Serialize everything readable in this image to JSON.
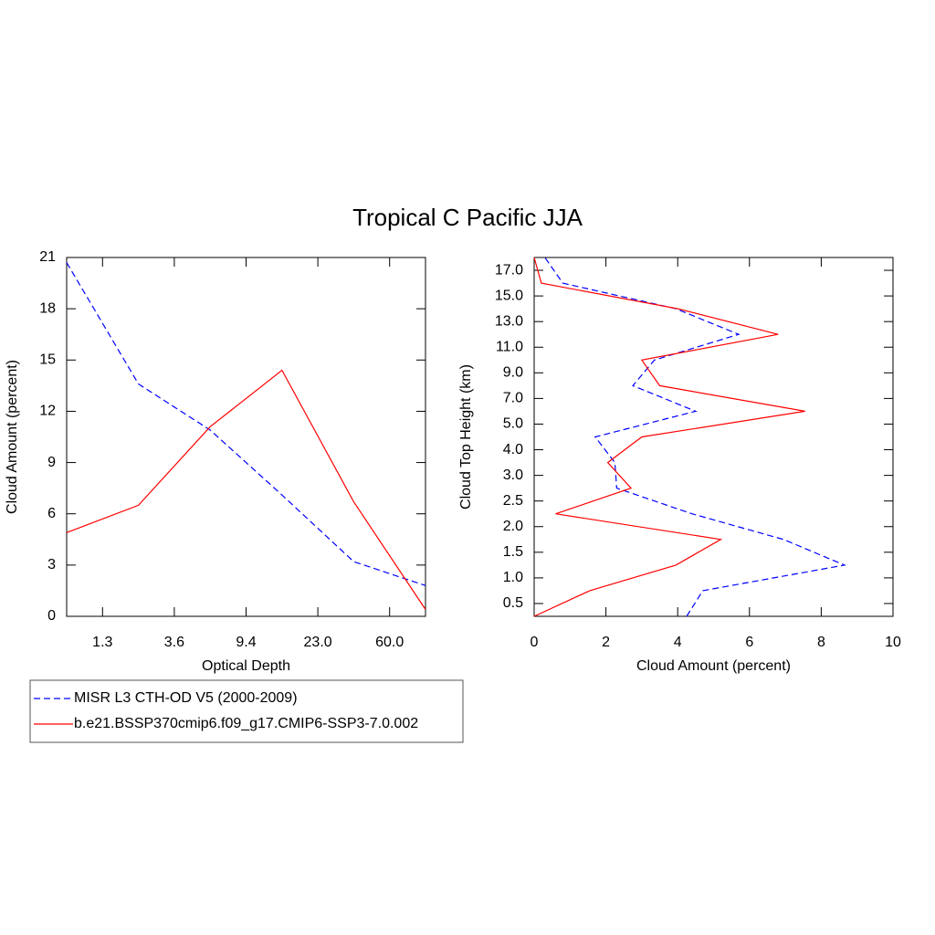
{
  "title": "Tropical C Pacific JJA",
  "chart_data": [
    {
      "type": "line",
      "orientation": "vertical",
      "xlabel": "Optical Depth",
      "ylabel": "Cloud Amount (percent)",
      "x": [
        0,
        1,
        2,
        3,
        4,
        5
      ],
      "xlim": [
        0,
        5
      ],
      "xticks": [
        {
          "value": 0.5,
          "label": "1.3"
        },
        {
          "value": 1.5,
          "label": "3.6"
        },
        {
          "value": 2.5,
          "label": "9.4"
        },
        {
          "value": 3.5,
          "label": "23.0"
        },
        {
          "value": 4.5,
          "label": "60.0"
        }
      ],
      "ylim": [
        0,
        21
      ],
      "yticks": [
        0,
        3,
        6,
        9,
        12,
        15,
        18,
        21
      ],
      "series": [
        {
          "name": "MISR L3 CTH-OD V5 (2000-2009)",
          "color": "#0000ff",
          "dashed": true,
          "values": [
            20.7,
            13.6,
            10.9,
            7.1,
            3.2,
            1.8
          ]
        },
        {
          "name": "b.e21.BSSP370cmip6.f09_g17.CMIP6-SSP3-7.0.002",
          "color": "#ff0000",
          "dashed": false,
          "values": [
            4.9,
            6.5,
            11.1,
            14.4,
            6.7,
            0.4
          ]
        }
      ]
    },
    {
      "type": "line",
      "orientation": "horizontal",
      "xlabel": "Cloud Amount (percent)",
      "ylabel": "Cloud Top Height (km)",
      "y": [
        0,
        1,
        2,
        3,
        4,
        5,
        6,
        7,
        8,
        9,
        10,
        11,
        12,
        13,
        14
      ],
      "ylim": [
        0,
        14
      ],
      "yticks": [
        {
          "value": 0.5,
          "label": "0.5"
        },
        {
          "value": 1.5,
          "label": "1.0"
        },
        {
          "value": 2.5,
          "label": "1.5"
        },
        {
          "value": 3.5,
          "label": "2.0"
        },
        {
          "value": 4.5,
          "label": "2.5"
        },
        {
          "value": 5.5,
          "label": "3.0"
        },
        {
          "value": 6.5,
          "label": "4.0"
        },
        {
          "value": 7.5,
          "label": "5.0"
        },
        {
          "value": 8.5,
          "label": "7.0"
        },
        {
          "value": 9.5,
          "label": "9.0"
        },
        {
          "value": 10.5,
          "label": "11.0"
        },
        {
          "value": 11.5,
          "label": "13.0"
        },
        {
          "value": 12.5,
          "label": "15.0"
        },
        {
          "value": 13.5,
          "label": "17.0"
        }
      ],
      "xlim": [
        0,
        10
      ],
      "xticks": [
        0,
        2,
        4,
        6,
        8,
        10
      ],
      "series": [
        {
          "color": "#0000ff",
          "dashed": true,
          "values": [
            4.25,
            4.7,
            8.65,
            6.95,
            4.4,
            2.3,
            2.25,
            1.7,
            4.5,
            2.75,
            3.35,
            5.7,
            3.95,
            0.8,
            0.3
          ]
        },
        {
          "color": "#ff0000",
          "dashed": false,
          "values": [
            0,
            1.55,
            3.95,
            5.2,
            0.6,
            2.7,
            2.05,
            3.0,
            7.55,
            3.5,
            3.0,
            6.8,
            4.0,
            0.2,
            0
          ]
        }
      ]
    }
  ]
}
